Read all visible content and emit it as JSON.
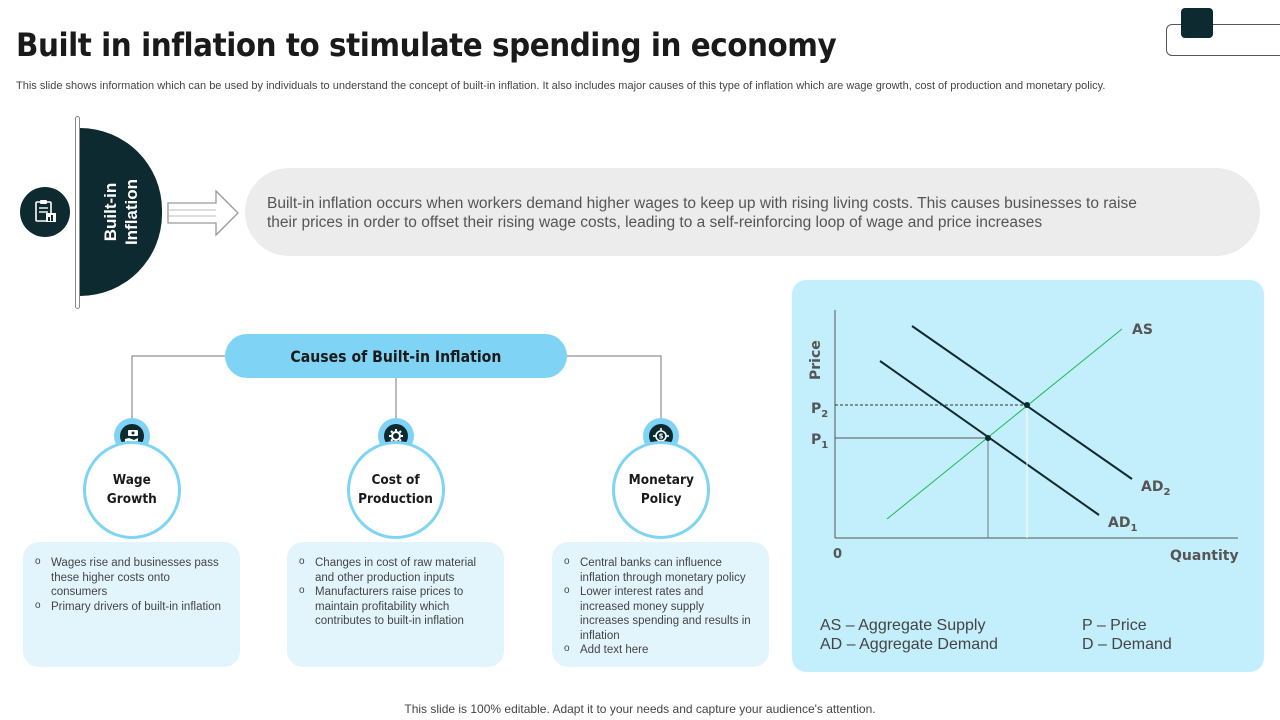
{
  "header": {
    "title": "Built in inflation to stimulate spending in economy",
    "subtitle": "This slide shows information which can be used by individuals to understand the concept of built-in inflation. It also includes major causes of this type of inflation which are wage growth, cost of production and monetary policy."
  },
  "definition": {
    "label": "Built-in\nInflation",
    "text": "Built-in inflation occurs when workers demand higher wages to keep up with rising living costs. This causes businesses to raise their prices in order to offset their rising wage costs, leading to a self-reinforcing loop of wage and price increases",
    "icon": "document-report-icon"
  },
  "causes": {
    "heading": "Causes of Built-in Inflation",
    "items": [
      {
        "title": "Wage\nGrowth",
        "icon": "hand-money-icon",
        "bullets": [
          "Wages rise and businesses pass these higher costs onto consumers",
          "Primary drivers of built-in inflation"
        ]
      },
      {
        "title": "Cost of\nProduction",
        "icon": "gear-production-icon",
        "bullets": [
          "Changes in cost of raw material and other production inputs",
          "Manufacturers raise prices to maintain profitability which contributes to built-in inflation"
        ]
      },
      {
        "title": "Monetary\nPolicy",
        "icon": "dollar-target-icon",
        "bullets": [
          "Central banks can influence inflation through monetary policy",
          "Lower interest rates and increased money supply increases spending and results in inflation",
          "Add text here"
        ]
      }
    ]
  },
  "chart_data": {
    "type": "line",
    "xlabel": "Quantity",
    "ylabel": "Price",
    "origin_label": "0",
    "series": [
      {
        "name": "AS"
      },
      {
        "name": "AD",
        "subscript": "2"
      },
      {
        "name": "AD",
        "subscript": "1"
      }
    ],
    "price_levels": [
      {
        "name": "P",
        "subscript": "2"
      },
      {
        "name": "P",
        "subscript": "1"
      }
    ],
    "colors": {
      "as": "#1db954",
      "ad": "#0d2a30"
    }
  },
  "legend": {
    "as": "AS – Aggregate Supply",
    "ad": "AD – Aggregate Demand",
    "p": "P – Price",
    "d": "D – Demand"
  },
  "footer": "This slide is 100% editable. Adapt it to your needs and capture your audience's attention.",
  "colors": {
    "dark": "#0d2a30",
    "accent": "#7fd4f5",
    "card": "#e2f5fc",
    "chart_bg": "#c3eefb"
  }
}
